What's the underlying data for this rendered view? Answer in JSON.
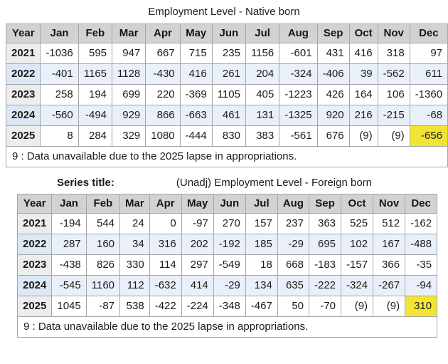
{
  "colors": {
    "header_gray": "#d2d2d2",
    "year_col_gray": "#ededed",
    "alt_row_blue": "#e9f0fa",
    "alt_year_blue": "#dce8f6",
    "highlight_yellow": "#f2e435",
    "grid_border": "#a5a5a5"
  },
  "tables": [
    {
      "title": "Employment Level - Native born",
      "columns": [
        "Year",
        "Jan",
        "Feb",
        "Mar",
        "Apr",
        "May",
        "Jun",
        "Jul",
        "Aug",
        "Sep",
        "Oct",
        "Nov",
        "Dec"
      ],
      "rows": [
        {
          "year": "2021",
          "values": [
            "-1036",
            "595",
            "947",
            "667",
            "715",
            "235",
            "1156",
            "-601",
            "431",
            "416",
            "318",
            "97"
          ]
        },
        {
          "year": "2022",
          "values": [
            "-401",
            "1165",
            "1128",
            "-430",
            "416",
            "261",
            "204",
            "-324",
            "-406",
            "39",
            "-562",
            "611"
          ]
        },
        {
          "year": "2023",
          "values": [
            "258",
            "194",
            "699",
            "220",
            "-369",
            "1105",
            "405",
            "-1223",
            "426",
            "164",
            "106",
            "-1360"
          ]
        },
        {
          "year": "2024",
          "values": [
            "-560",
            "-494",
            "929",
            "866",
            "-663",
            "461",
            "131",
            "-1325",
            "920",
            "216",
            "-215",
            "-68"
          ]
        },
        {
          "year": "2025",
          "values": [
            "8",
            "284",
            "329",
            "1080",
            "-444",
            "830",
            "383",
            "-561",
            "676",
            "(9)",
            "(9)",
            "-656"
          ],
          "highlight_index": 11
        }
      ],
      "footnote": "9 : Data unavailable due to the 2025 lapse in appropriations."
    },
    {
      "series_label": "Series title:",
      "title": "(Unadj) Employment Level - Foreign born",
      "columns": [
        "Year",
        "Jan",
        "Feb",
        "Mar",
        "Apr",
        "May",
        "Jun",
        "Jul",
        "Aug",
        "Sep",
        "Oct",
        "Nov",
        "Dec"
      ],
      "rows": [
        {
          "year": "2021",
          "values": [
            "-194",
            "544",
            "24",
            "0",
            "-97",
            "270",
            "157",
            "237",
            "363",
            "525",
            "512",
            "-162"
          ]
        },
        {
          "year": "2022",
          "values": [
            "287",
            "160",
            "34",
            "316",
            "202",
            "-192",
            "185",
            "-29",
            "695",
            "102",
            "167",
            "-488"
          ]
        },
        {
          "year": "2023",
          "values": [
            "-438",
            "826",
            "330",
            "114",
            "297",
            "-549",
            "18",
            "668",
            "-183",
            "-157",
            "366",
            "-35"
          ]
        },
        {
          "year": "2024",
          "values": [
            "-545",
            "1160",
            "112",
            "-632",
            "414",
            "-29",
            "134",
            "635",
            "-222",
            "-324",
            "-267",
            "-94"
          ]
        },
        {
          "year": "2025",
          "values": [
            "1045",
            "-87",
            "538",
            "-422",
            "-224",
            "-348",
            "-467",
            "50",
            "-70",
            "(9)",
            "(9)",
            "310"
          ],
          "highlight_index": 11
        }
      ],
      "footnote": "9 : Data unavailable due to the 2025 lapse in appropriations."
    }
  ],
  "chart_data": [
    {
      "type": "table",
      "title": "Employment Level - Native born",
      "categories": [
        "Jan",
        "Feb",
        "Mar",
        "Apr",
        "May",
        "Jun",
        "Jul",
        "Aug",
        "Sep",
        "Oct",
        "Nov",
        "Dec"
      ],
      "series": [
        {
          "name": "2021",
          "values": [
            -1036,
            595,
            947,
            667,
            715,
            235,
            1156,
            -601,
            431,
            416,
            318,
            97
          ]
        },
        {
          "name": "2022",
          "values": [
            -401,
            1165,
            1128,
            -430,
            416,
            261,
            204,
            -324,
            -406,
            39,
            -562,
            611
          ]
        },
        {
          "name": "2023",
          "values": [
            258,
            194,
            699,
            220,
            -369,
            1105,
            405,
            -1223,
            426,
            164,
            106,
            -1360
          ]
        },
        {
          "name": "2024",
          "values": [
            -560,
            -494,
            929,
            866,
            -663,
            461,
            131,
            -1325,
            920,
            216,
            -215,
            -68
          ]
        },
        {
          "name": "2025",
          "values": [
            8,
            284,
            329,
            1080,
            -444,
            830,
            383,
            -561,
            676,
            null,
            null,
            -656
          ]
        }
      ],
      "annotations": [
        "Oct/Nov 2025 shown as (9)",
        "Dec 2025 value -656 highlighted yellow",
        "9 : Data unavailable due to the 2025 lapse in appropriations."
      ]
    },
    {
      "type": "table",
      "title": "(Unadj) Employment Level - Foreign born",
      "categories": [
        "Jan",
        "Feb",
        "Mar",
        "Apr",
        "May",
        "Jun",
        "Jul",
        "Aug",
        "Sep",
        "Oct",
        "Nov",
        "Dec"
      ],
      "series": [
        {
          "name": "2021",
          "values": [
            -194,
            544,
            24,
            0,
            -97,
            270,
            157,
            237,
            363,
            525,
            512,
            -162
          ]
        },
        {
          "name": "2022",
          "values": [
            287,
            160,
            34,
            316,
            202,
            -192,
            185,
            -29,
            695,
            102,
            167,
            -488
          ]
        },
        {
          "name": "2023",
          "values": [
            -438,
            826,
            330,
            114,
            297,
            -549,
            18,
            668,
            -183,
            -157,
            366,
            -35
          ]
        },
        {
          "name": "2024",
          "values": [
            -545,
            1160,
            112,
            -632,
            414,
            -29,
            134,
            635,
            -222,
            -324,
            -267,
            -94
          ]
        },
        {
          "name": "2025",
          "values": [
            1045,
            -87,
            538,
            -422,
            -224,
            -348,
            -467,
            50,
            -70,
            null,
            null,
            310
          ]
        }
      ],
      "annotations": [
        "Oct/Nov 2025 shown as (9)",
        "Dec 2025 value 310 highlighted yellow",
        "9 : Data unavailable due to the 2025 lapse in appropriations."
      ]
    }
  ]
}
